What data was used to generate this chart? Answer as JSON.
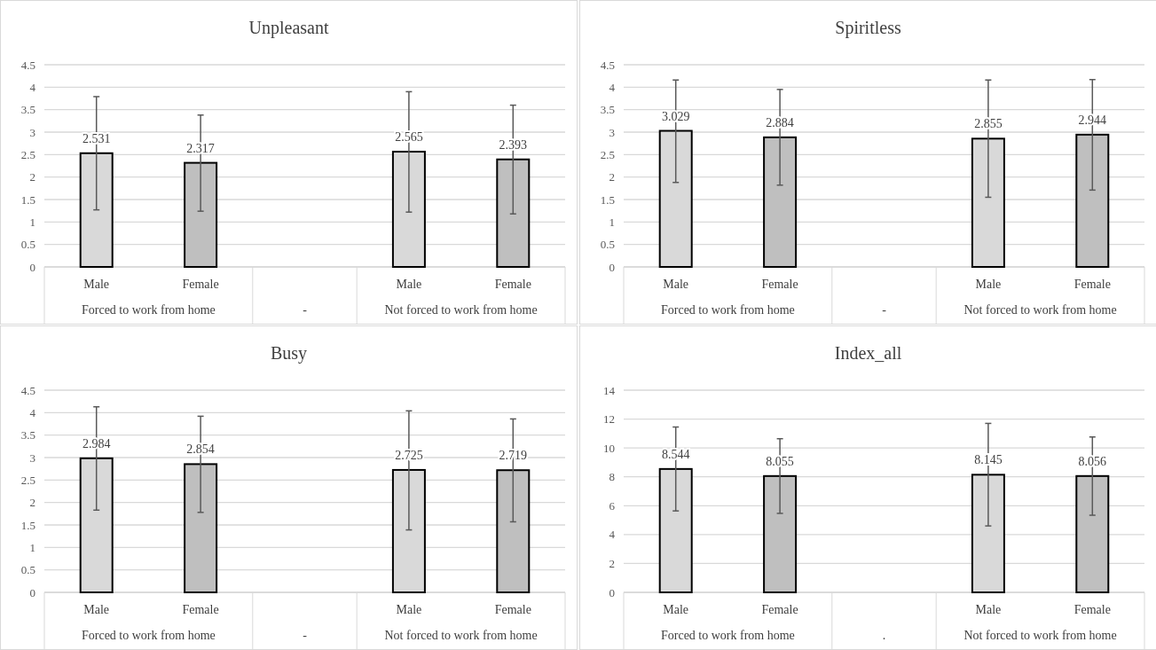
{
  "chart_data": [
    {
      "type": "bar",
      "title": "Unpleasant",
      "categories": [
        "Male",
        "Female",
        null,
        "Male",
        "Female"
      ],
      "values": [
        2.531,
        2.317,
        null,
        2.565,
        2.393
      ],
      "colors": [
        "#d9d9d9",
        "#bfbfbf",
        null,
        "#d9d9d9",
        "#bfbfbf"
      ],
      "errors": [
        [
          1.27,
          3.79
        ],
        [
          1.24,
          3.38
        ],
        null,
        [
          1.22,
          3.9
        ],
        [
          1.18,
          3.6
        ]
      ],
      "ylim": [
        0,
        4.5
      ],
      "yticks": [
        0,
        0.5,
        1,
        1.5,
        2,
        2.5,
        3,
        3.5,
        4,
        4.5
      ],
      "grid": "y",
      "data_labels": true,
      "annotations": [
        "Forced to work from home",
        "-",
        "Not forced to work from home"
      ]
    },
    {
      "type": "bar",
      "title": "Spiritless",
      "categories": [
        "Male",
        "Female",
        null,
        "Male",
        "Female"
      ],
      "values": [
        3.029,
        2.884,
        null,
        2.855,
        2.944
      ],
      "colors": [
        "#d9d9d9",
        "#bfbfbf",
        null,
        "#d9d9d9",
        "#bfbfbf"
      ],
      "errors": [
        [
          1.88,
          4.16
        ],
        [
          1.82,
          3.95
        ],
        null,
        [
          1.55,
          4.16
        ],
        [
          1.71,
          4.17
        ]
      ],
      "ylim": [
        0,
        4.5
      ],
      "yticks": [
        0,
        0.5,
        1,
        1.5,
        2,
        2.5,
        3,
        3.5,
        4,
        4.5
      ],
      "grid": "y",
      "data_labels": true,
      "annotations": [
        "Forced to work from home",
        "-",
        "Not forced to work from home"
      ]
    },
    {
      "type": "bar",
      "title": "Busy",
      "categories": [
        "Male",
        "Female",
        null,
        "Male",
        "Female"
      ],
      "values": [
        2.984,
        2.854,
        null,
        2.725,
        2.719
      ],
      "colors": [
        "#d9d9d9",
        "#bfbfbf",
        null,
        "#d9d9d9",
        "#bfbfbf"
      ],
      "errors": [
        [
          1.83,
          4.13
        ],
        [
          1.78,
          3.92
        ],
        null,
        [
          1.39,
          4.04
        ],
        [
          1.57,
          3.86
        ]
      ],
      "ylim": [
        0,
        4.5
      ],
      "yticks": [
        0,
        0.5,
        1,
        1.5,
        2,
        2.5,
        3,
        3.5,
        4,
        4.5
      ],
      "grid": "y",
      "data_labels": true,
      "annotations": [
        "Forced to work from home",
        "-",
        "Not forced to work from home"
      ]
    },
    {
      "type": "bar",
      "title": "Index_all",
      "categories": [
        "Male",
        "Female",
        null,
        "Male",
        "Female"
      ],
      "values": [
        8.544,
        8.055,
        null,
        8.145,
        8.056
      ],
      "colors": [
        "#d9d9d9",
        "#bfbfbf",
        null,
        "#d9d9d9",
        "#bfbfbf"
      ],
      "errors": [
        [
          5.64,
          11.45
        ],
        [
          5.47,
          10.64
        ],
        null,
        [
          4.6,
          11.7
        ],
        [
          5.34,
          10.76
        ]
      ],
      "ylim": [
        0,
        14
      ],
      "yticks": [
        0,
        2,
        4,
        6,
        8,
        10,
        12,
        14
      ],
      "grid": "y",
      "data_labels": true,
      "annotations": [
        "Forced to work from home",
        ".",
        "Not forced to work from home"
      ]
    }
  ]
}
